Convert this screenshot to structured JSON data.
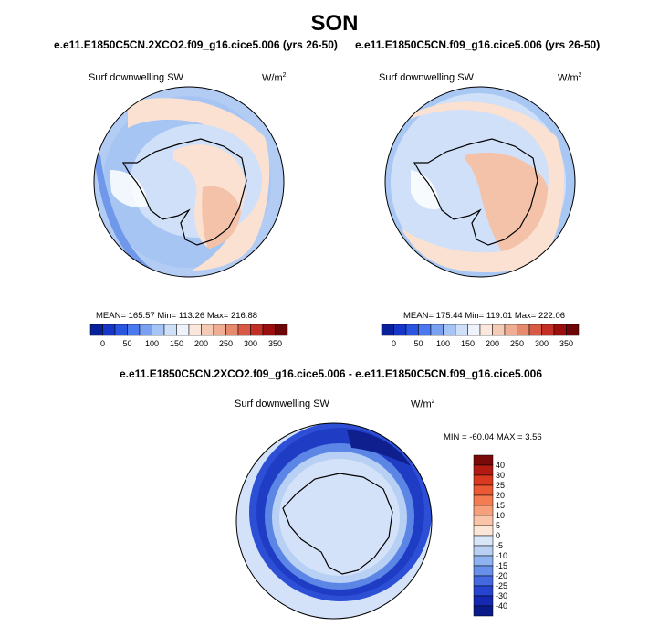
{
  "figure": {
    "season": "SON"
  },
  "panels": [
    {
      "title": "e.e11.E1850C5CN.2XCO2.f09_g16.cice5.006 (yrs 26-50)",
      "variable": "Surf downwelling SW",
      "units_base": "W/m",
      "units_exp": "2",
      "stats": "MEAN= 165.57   Min= 113.26   Max= 216.88"
    },
    {
      "title": "e.e11.E1850C5CN.f09_g16.cice5.006 (yrs 26-50)",
      "variable": "Surf downwelling SW",
      "units_base": "W/m",
      "units_exp": "2",
      "stats": "MEAN= 175.44   Min= 119.01   Max= 222.06"
    },
    {
      "title": "e.e11.E1850C5CN.2XCO2.f09_g16.cice5.006 - e.e11.E1850C5CN.f09_g16.cice5.006",
      "variable": "Surf downwelling SW",
      "units_base": "W/m",
      "units_exp": "2",
      "stats": "MIN = -60.04  MAX =   3.56"
    }
  ],
  "chart_data": [
    {
      "type": "heatmap",
      "projection": "south polar stereographic",
      "colorbar": {
        "orientation": "horizontal",
        "levels": [
          0,
          50,
          100,
          150,
          200,
          250,
          300,
          350
        ],
        "colors": [
          "#08219a",
          "#1636c8",
          "#2a55e0",
          "#4a78ee",
          "#7aa0f2",
          "#a6c4f5",
          "#cfdff8",
          "#edf2fb",
          "#fbe7dc",
          "#f6cbb5",
          "#efae93",
          "#e58a6c",
          "#d95a44",
          "#c22f24",
          "#9a0f0e",
          "#6d0606"
        ]
      },
      "field_summary": {
        "mean": 165.57,
        "min": 113.26,
        "max": 216.88
      }
    },
    {
      "type": "heatmap",
      "projection": "south polar stereographic",
      "colorbar": {
        "orientation": "horizontal",
        "levels": [
          0,
          50,
          100,
          150,
          200,
          250,
          300,
          350
        ],
        "colors": [
          "#08219a",
          "#1636c8",
          "#2a55e0",
          "#4a78ee",
          "#7aa0f2",
          "#a6c4f5",
          "#cfdff8",
          "#edf2fb",
          "#fbe7dc",
          "#f6cbb5",
          "#efae93",
          "#e58a6c",
          "#d95a44",
          "#c22f24",
          "#9a0f0e",
          "#6d0606"
        ]
      },
      "field_summary": {
        "mean": 175.44,
        "min": 119.01,
        "max": 222.06
      }
    },
    {
      "type": "heatmap",
      "projection": "south polar stereographic",
      "colorbar": {
        "orientation": "vertical",
        "levels": [
          40,
          30,
          25,
          20,
          15,
          10,
          5,
          0,
          -5,
          -10,
          -15,
          -20,
          -25,
          -30,
          -40
        ],
        "colors": [
          "#7a0a0a",
          "#b31a12",
          "#d83a20",
          "#ec5a35",
          "#f47c53",
          "#f7a07b",
          "#f9c4a7",
          "#fbe6d8",
          "#d9e6f8",
          "#b8d0f4",
          "#8eb2f0",
          "#6890ea",
          "#4468e0",
          "#2744d0",
          "#1428b0",
          "#0a1a88"
        ]
      },
      "field_summary": {
        "min": -60.04,
        "max": 3.56
      }
    }
  ]
}
